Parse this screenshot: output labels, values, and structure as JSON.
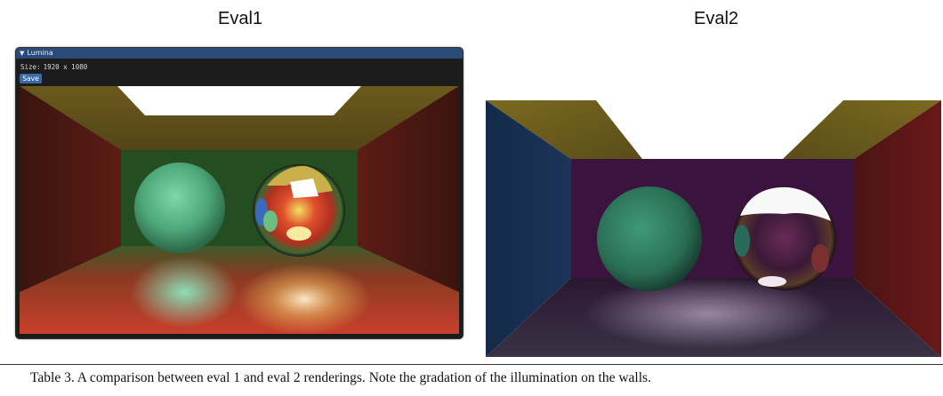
{
  "figures": [
    {
      "title": "Eval1"
    },
    {
      "title": "Eval2"
    }
  ],
  "lumina_window": {
    "title": "Lumina",
    "size_label": "Size:",
    "size_value": "1920 x 1080",
    "save_label": "Save"
  },
  "caption": "Table 3.  A comparison between eval 1 and eval 2 renderings. Note the gradation of the illumination on the walls.",
  "colors": {
    "titlebar": "#2a4a78",
    "save_button": "#3a6aa6",
    "window_bg": "#1c1c1c"
  },
  "icons": {
    "collapse": "triangle-down-icon"
  }
}
